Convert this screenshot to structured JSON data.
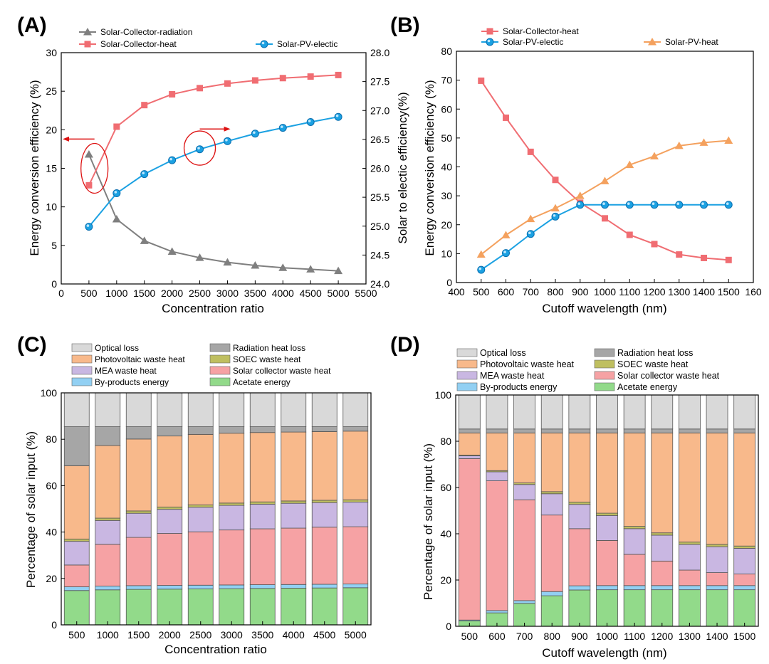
{
  "colors": {
    "radiation": "#7f7f7f",
    "collector": "#f06d72",
    "pv": "#1ba1e2",
    "pvheat": "#f4a15e",
    "annot": "#dd1111"
  },
  "stack_colors": {
    "optical": "#d9d9d9",
    "radheat": "#a6a6a6",
    "pvwaste": "#f8b98b",
    "soec": "#bfbf60",
    "mea": "#c9b7e2",
    "solarcoll": "#f6a2a4",
    "byprod": "#92d0f3",
    "acetate": "#92da8a"
  },
  "chart_data": [
    {
      "id": "A",
      "type": "line",
      "panel_label": "(A)",
      "xlabel": "Concentration ratio",
      "ylabel": "Energy conversion efficiency (%)",
      "y2label": "Solar to electic efficiency(%)",
      "xlim": [
        0,
        5500
      ],
      "ylim": [
        0,
        30
      ],
      "y2lim": [
        24.0,
        28.0
      ],
      "x_ticks": [
        "0",
        "500",
        "1000",
        "1500",
        "2000",
        "2500",
        "3000",
        "3500",
        "4000",
        "4500",
        "5000",
        "5500"
      ],
      "y_ticks": [
        "0",
        "5",
        "10",
        "15",
        "20",
        "25",
        "30"
      ],
      "y2_ticks": [
        "24.0",
        "24.5",
        "25.0",
        "25.5",
        "26.0",
        "26.5",
        "27.0",
        "27.5",
        "28.0"
      ],
      "x": [
        500,
        1000,
        1500,
        2000,
        2500,
        3000,
        3500,
        4000,
        4500,
        5000
      ],
      "series": [
        {
          "name": "Solar-Collector-radiation",
          "axis": "left",
          "marker": "triangle",
          "color_key": "radiation",
          "values": [
            16.8,
            8.4,
            5.6,
            4.2,
            3.4,
            2.8,
            2.4,
            2.1,
            1.9,
            1.7
          ]
        },
        {
          "name": "Solar-Collector-heat",
          "axis": "left",
          "marker": "square",
          "color_key": "collector",
          "values": [
            12.8,
            20.4,
            23.2,
            24.6,
            25.4,
            26.0,
            26.4,
            26.7,
            26.9,
            27.1
          ]
        },
        {
          "name": "Solar-PV-electic",
          "axis": "right",
          "marker": "circle",
          "color_key": "pv",
          "values": [
            24.99,
            25.57,
            25.9,
            26.14,
            26.33,
            26.47,
            26.6,
            26.7,
            26.8,
            26.89
          ]
        }
      ]
    },
    {
      "id": "B",
      "type": "line",
      "panel_label": "(B)",
      "xlabel": "Cutoff wavelength (nm)",
      "ylabel": "Energy conversion efficiency (%)",
      "xlim": [
        400,
        1600
      ],
      "ylim": [
        0,
        80
      ],
      "x_ticks": [
        "400",
        "500",
        "600",
        "700",
        "800",
        "900",
        "1000",
        "1100",
        "1200",
        "1300",
        "1400",
        "1500",
        "160"
      ],
      "y_ticks": [
        "0",
        "10",
        "20",
        "30",
        "40",
        "50",
        "60",
        "70",
        "80"
      ],
      "x": [
        500,
        600,
        700,
        800,
        900,
        1000,
        1100,
        1200,
        1300,
        1400,
        1500
      ],
      "series": [
        {
          "name": "Solar-Collector-heat",
          "marker": "square",
          "color_key": "collector",
          "values": [
            69.8,
            57.0,
            45.2,
            35.5,
            27.6,
            22.2,
            16.5,
            13.3,
            9.7,
            8.5,
            7.8
          ]
        },
        {
          "name": "Solar-PV-electic",
          "marker": "circle",
          "color_key": "pv",
          "values": [
            4.4,
            10.2,
            16.8,
            22.8,
            26.9,
            26.9,
            26.9,
            26.9,
            26.9,
            26.9,
            26.9
          ]
        },
        {
          "name": "Solar-PV-heat",
          "marker": "triangle",
          "color_key": "pvheat",
          "values": [
            9.7,
            16.4,
            22.0,
            25.7,
            30.0,
            35.1,
            40.7,
            43.7,
            47.3,
            48.4,
            49.1
          ]
        }
      ]
    },
    {
      "id": "C",
      "type": "bar",
      "stacked": true,
      "panel_label": "(C)",
      "xlabel": "Concentration ratio",
      "ylabel": "Percentage of solar input (%)",
      "ylim": [
        0,
        100
      ],
      "y_ticks": [
        "0",
        "20",
        "40",
        "60",
        "80",
        "100"
      ],
      "categories": [
        "500",
        "1000",
        "1500",
        "2000",
        "2500",
        "3000",
        "3500",
        "4000",
        "4500",
        "5000"
      ],
      "series": [
        {
          "name": "Acetate energy",
          "key": "acetate",
          "values": [
            14.8,
            15.1,
            15.3,
            15.4,
            15.5,
            15.6,
            15.7,
            15.8,
            15.9,
            16.0
          ]
        },
        {
          "name": "By-products energy",
          "key": "byprod",
          "values": [
            1.6,
            1.6,
            1.6,
            1.6,
            1.6,
            1.6,
            1.6,
            1.6,
            1.6,
            1.6
          ]
        },
        {
          "name": "Solar collector waste heat",
          "key": "solarcoll",
          "values": [
            9.4,
            18.0,
            20.8,
            22.4,
            23.0,
            23.7,
            24.1,
            24.3,
            24.6,
            24.7
          ]
        },
        {
          "name": "MEA waste heat",
          "key": "mea",
          "values": [
            10.2,
            10.3,
            10.4,
            10.4,
            10.6,
            10.6,
            10.6,
            10.7,
            10.6,
            10.6
          ]
        },
        {
          "name": "SOEC waste heat",
          "key": "soec",
          "values": [
            1.0,
            1.0,
            1.0,
            1.0,
            1.0,
            1.0,
            1.0,
            1.0,
            1.0,
            1.0
          ]
        },
        {
          "name": "Photovoltaic waste heat",
          "key": "pvwaste",
          "values": [
            31.6,
            31.3,
            31.0,
            30.6,
            30.4,
            30.1,
            29.9,
            29.7,
            29.6,
            29.6
          ]
        },
        {
          "name": "Radiation heat loss",
          "key": "radheat",
          "values": [
            16.8,
            8.1,
            5.3,
            4.0,
            3.3,
            2.8,
            2.5,
            2.3,
            2.1,
            1.9
          ]
        },
        {
          "name": "Optical loss",
          "key": "optical",
          "values": [
            14.6,
            14.6,
            14.6,
            14.6,
            14.6,
            14.6,
            14.6,
            14.6,
            14.6,
            14.6
          ]
        }
      ]
    },
    {
      "id": "D",
      "type": "bar",
      "stacked": true,
      "panel_label": "(D)",
      "xlabel": "Cutoff wavelength (nm)",
      "ylabel": "Percentage of solar input (%)",
      "ylim": [
        0,
        100
      ],
      "y_ticks": [
        "0",
        "20",
        "40",
        "60",
        "80",
        "100"
      ],
      "categories": [
        "500",
        "600",
        "700",
        "800",
        "900",
        "1000",
        "1100",
        "1200",
        "1300",
        "1400",
        "1500"
      ],
      "series": [
        {
          "name": "Acetate energy",
          "key": "acetate",
          "values": [
            2.3,
            5.8,
            9.9,
            13.2,
            15.7,
            15.8,
            15.8,
            15.8,
            15.8,
            15.8,
            15.8
          ]
        },
        {
          "name": "By-products energy",
          "key": "byprod",
          "values": [
            0.4,
            1.0,
            1.2,
            1.8,
            1.8,
            1.8,
            1.8,
            1.8,
            1.8,
            1.8,
            1.8
          ]
        },
        {
          "name": "Solar collector waste heat",
          "key": "solarcoll",
          "values": [
            69.8,
            56.1,
            43.6,
            33.1,
            24.7,
            19.5,
            13.5,
            10.6,
            6.7,
            5.6,
            5.0
          ]
        },
        {
          "name": "MEA waste heat",
          "key": "mea",
          "values": [
            1.2,
            3.9,
            6.6,
            9.2,
            10.5,
            10.8,
            11.1,
            11.2,
            11.1,
            11.2,
            11.1
          ]
        },
        {
          "name": "SOEC waste heat",
          "key": "soec",
          "values": [
            0.3,
            0.5,
            0.7,
            0.9,
            1.0,
            1.0,
            1.0,
            1.0,
            1.0,
            1.0,
            1.0
          ]
        },
        {
          "name": "Photovoltaic waste heat",
          "key": "pvwaste",
          "values": [
            9.6,
            16.3,
            21.6,
            25.4,
            29.9,
            34.7,
            40.4,
            43.2,
            47.2,
            48.2,
            48.9
          ]
        },
        {
          "name": "Radiation heat loss",
          "key": "radheat",
          "values": [
            1.7,
            1.7,
            1.7,
            1.7,
            1.7,
            1.7,
            1.7,
            1.7,
            1.7,
            1.7,
            1.7
          ]
        },
        {
          "name": "Optical loss",
          "key": "optical",
          "values": [
            14.7,
            14.7,
            14.7,
            14.7,
            14.7,
            14.7,
            14.7,
            14.7,
            14.7,
            14.7,
            14.7
          ]
        }
      ]
    }
  ],
  "stack_legend_order": [
    [
      "Optical loss",
      "optical"
    ],
    [
      "Radiation heat loss",
      "radheat"
    ],
    [
      "Photovoltaic waste heat",
      "pvwaste"
    ],
    [
      "SOEC waste heat",
      "soec"
    ],
    [
      "MEA waste heat",
      "mea"
    ],
    [
      "Solar collector waste heat",
      "solarcoll"
    ],
    [
      "By-products energy",
      "byprod"
    ],
    [
      "Acetate energy",
      "acetate"
    ]
  ]
}
